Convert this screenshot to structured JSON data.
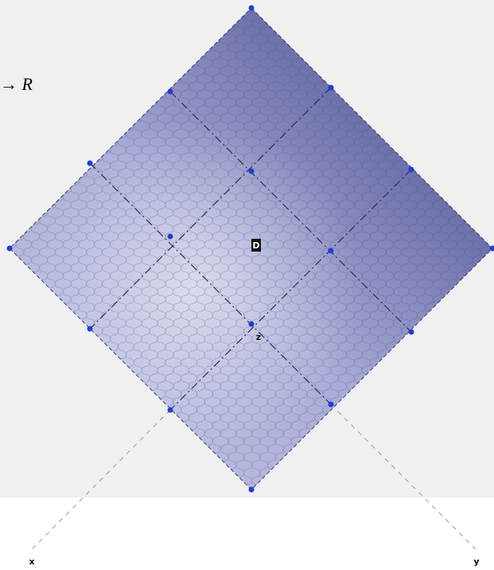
{
  "labels": {
    "function": "→ R",
    "surface": "D",
    "z_axis": "z",
    "x_axis": "x",
    "y_axis": "y"
  }
}
